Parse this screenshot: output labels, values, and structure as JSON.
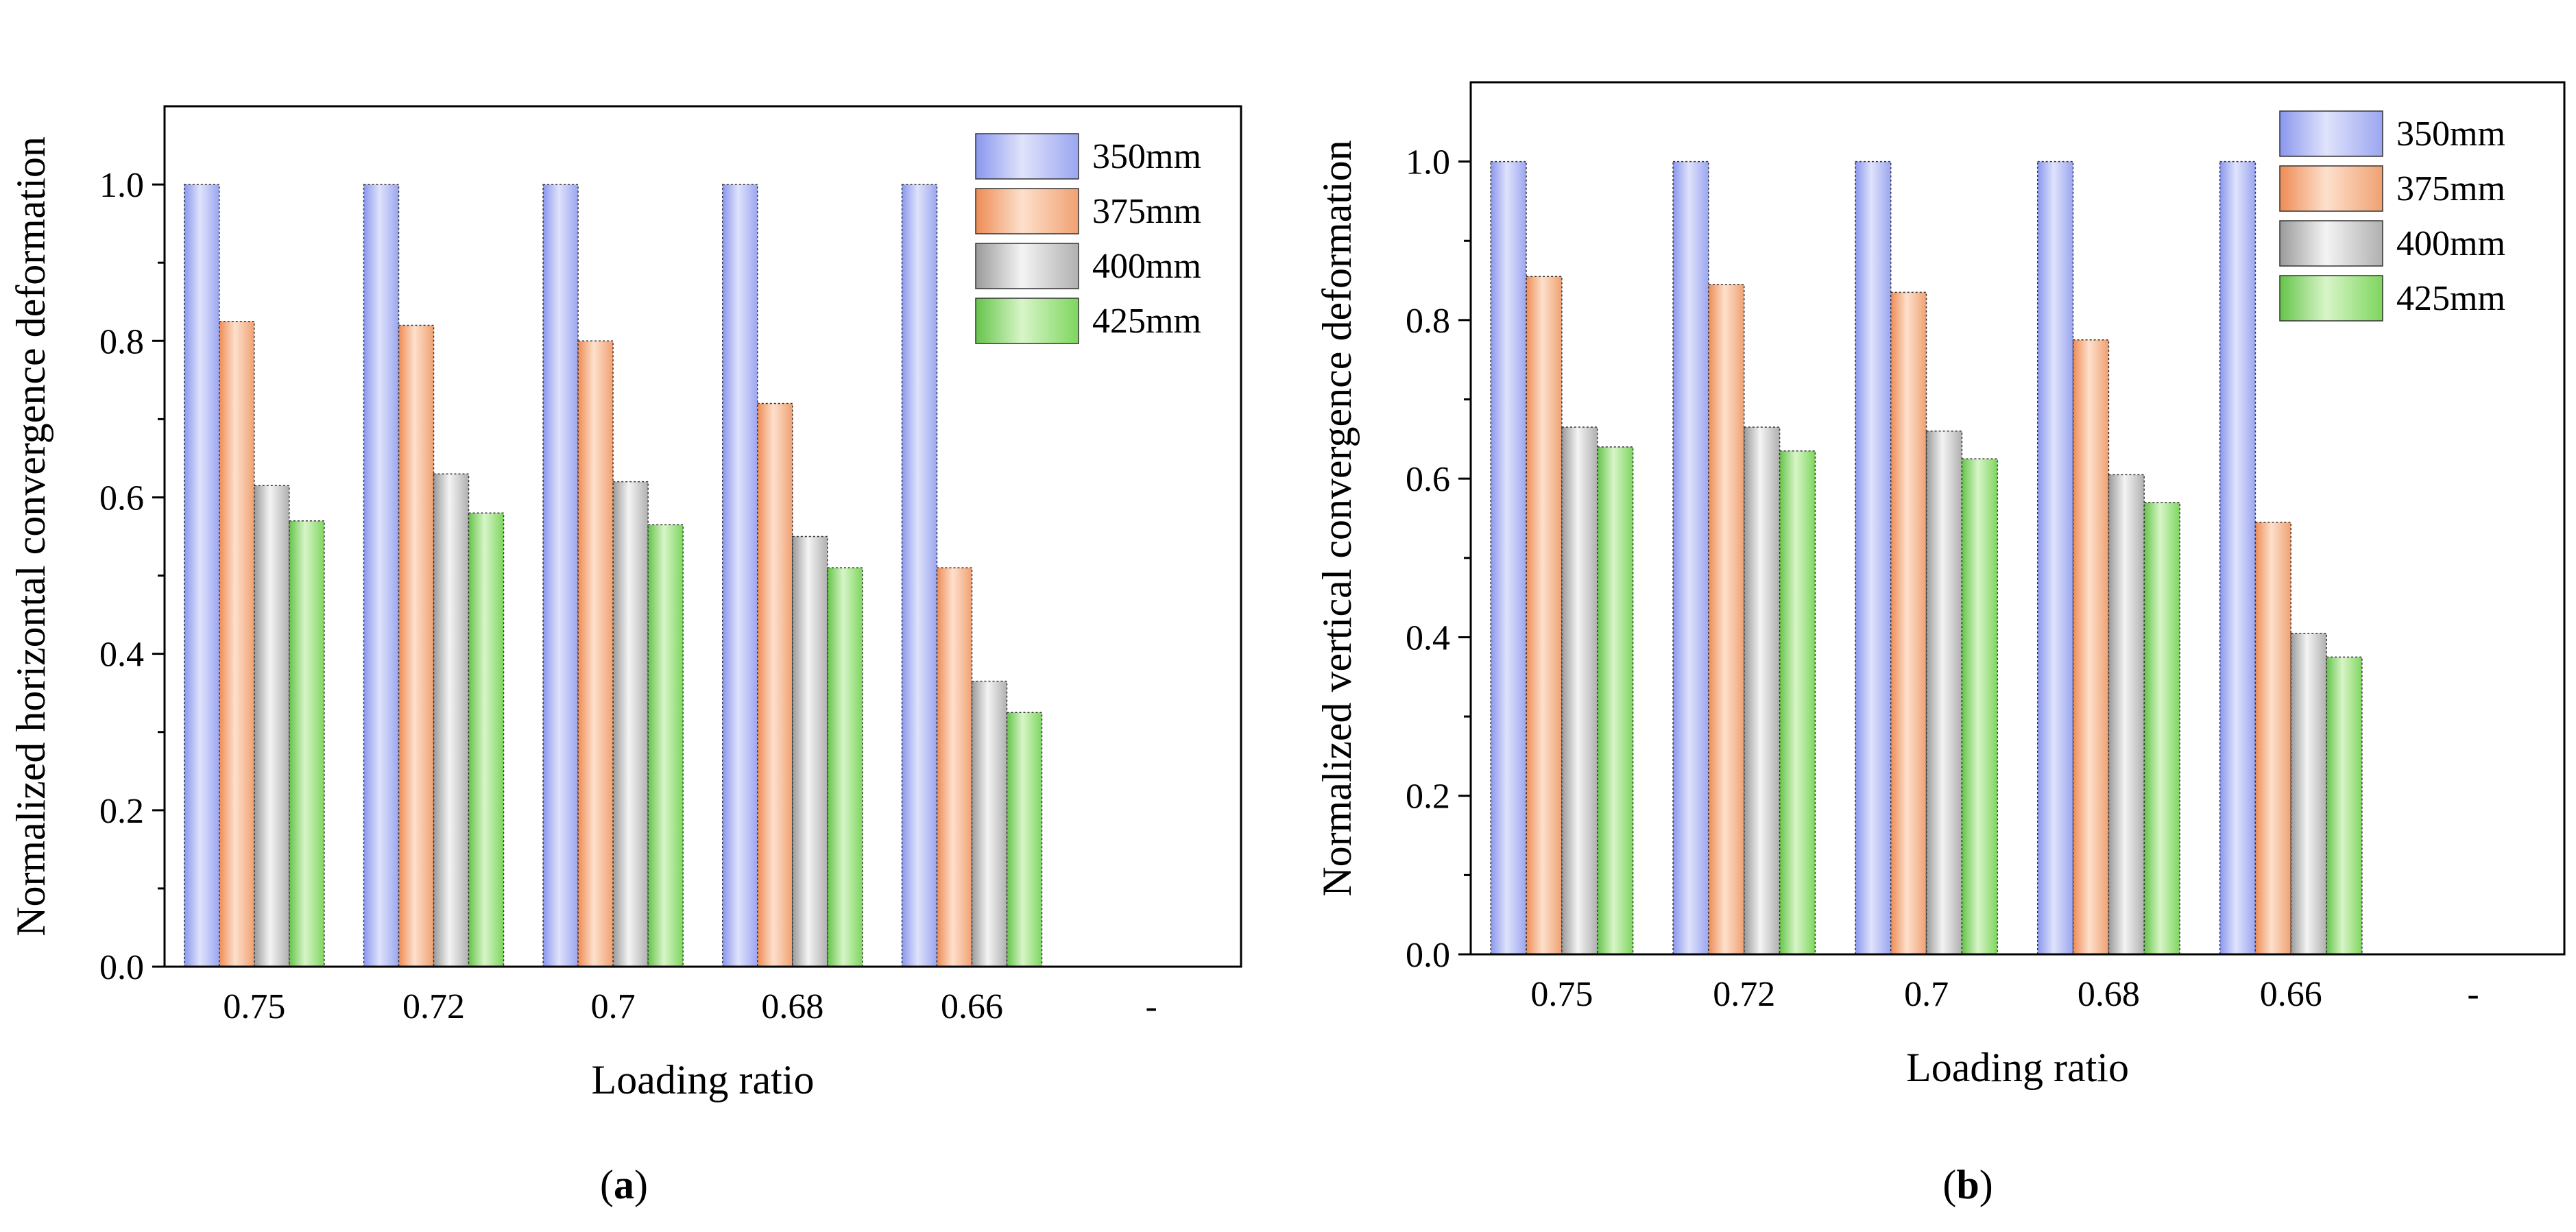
{
  "figure": {
    "panels": [
      {
        "label_open": "(",
        "label_letter": "a",
        "label_close": ")"
      },
      {
        "label_open": "(",
        "label_letter": "b",
        "label_close": ")"
      }
    ]
  },
  "colors": {
    "350mm": [
      "#8a97ee",
      "#dfe3fb",
      "#9ba6f0"
    ],
    "375mm": [
      "#ee8c55",
      "#fde0cc",
      "#f0a172"
    ],
    "400mm": [
      "#9a9a9a",
      "#f4f4f4",
      "#b0b0b0"
    ],
    "425mm": [
      "#65c44a",
      "#d8f5c8",
      "#7ed65f"
    ]
  },
  "chart_data": [
    {
      "type": "bar",
      "title": "",
      "xlabel": "Loading ratio",
      "ylabel": "Normalized horizontal convergence deformation",
      "categories": [
        "0.75",
        "0.72",
        "0.7",
        "0.68",
        "0.66",
        "-"
      ],
      "ylim": [
        0,
        1.1
      ],
      "yticks": [
        "0.0",
        "0.2",
        "0.4",
        "0.6",
        "0.8",
        "1.0"
      ],
      "legend_position": "top-right",
      "series": [
        {
          "name": "350mm",
          "values": [
            1.0,
            1.0,
            1.0,
            1.0,
            1.0,
            null
          ]
        },
        {
          "name": "375mm",
          "values": [
            0.825,
            0.82,
            0.8,
            0.72,
            0.51,
            null
          ]
        },
        {
          "name": "400mm",
          "values": [
            0.615,
            0.63,
            0.62,
            0.55,
            0.365,
            null
          ]
        },
        {
          "name": "425mm",
          "values": [
            0.57,
            0.58,
            0.565,
            0.51,
            0.325,
            null
          ]
        }
      ]
    },
    {
      "type": "bar",
      "title": "",
      "xlabel": "Loading ratio",
      "ylabel": "Normalized vertical convergence deformation",
      "categories": [
        "0.75",
        "0.72",
        "0.7",
        "0.68",
        "0.66",
        "-"
      ],
      "ylim": [
        0,
        1.1
      ],
      "yticks": [
        "0.0",
        "0.2",
        "0.4",
        "0.6",
        "0.8",
        "1.0"
      ],
      "legend_position": "top-right",
      "series": [
        {
          "name": "350mm",
          "values": [
            1.0,
            1.0,
            1.0,
            1.0,
            1.0,
            null
          ]
        },
        {
          "name": "375mm",
          "values": [
            0.855,
            0.845,
            0.835,
            0.775,
            0.545,
            null
          ]
        },
        {
          "name": "400mm",
          "values": [
            0.665,
            0.665,
            0.66,
            0.605,
            0.405,
            null
          ]
        },
        {
          "name": "425mm",
          "values": [
            0.64,
            0.635,
            0.625,
            0.57,
            0.375,
            null
          ]
        }
      ]
    }
  ]
}
